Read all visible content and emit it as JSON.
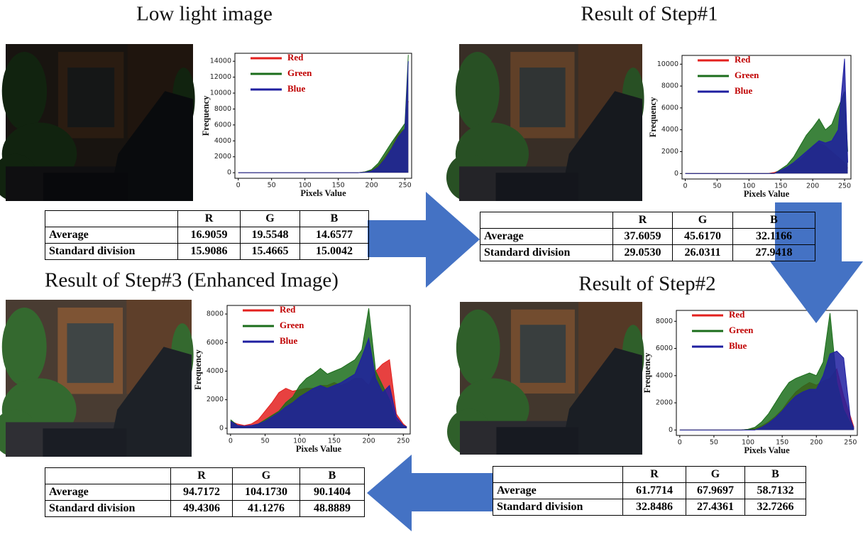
{
  "panels": [
    {
      "title": "Low light image",
      "chart": {
        "type": "area",
        "xlabel": "Pixels Value",
        "ylabel": "Frequency",
        "x": [
          0,
          10,
          20,
          30,
          40,
          50,
          60,
          70,
          80,
          90,
          100,
          110,
          120,
          130,
          140,
          150,
          160,
          170,
          180,
          190,
          200,
          210,
          220,
          230,
          240,
          250,
          255
        ],
        "xlim": [
          -5,
          260
        ],
        "xticks": [
          0,
          50,
          100,
          150,
          200,
          250
        ],
        "ylim": [
          -700,
          15000
        ],
        "yticks": [
          0,
          2000,
          4000,
          6000,
          8000,
          10000,
          12000,
          14000
        ],
        "series": [
          {
            "name": "Red",
            "color": "#e3201e",
            "values": [
              0,
              0,
              0,
              0,
              0,
              0,
              0,
              0,
              0,
              0,
              0,
              0,
              0,
              0,
              0,
              0,
              0,
              0,
              0,
              100,
              300,
              900,
              2000,
              3200,
              5000,
              5500,
              9000
            ]
          },
          {
            "name": "Green",
            "color": "#1b6d1b",
            "values": [
              0,
              0,
              0,
              0,
              0,
              0,
              0,
              0,
              0,
              0,
              0,
              0,
              0,
              0,
              0,
              0,
              0,
              0,
              0,
              100,
              400,
              1200,
              2500,
              3800,
              5000,
              6200,
              14800
            ]
          },
          {
            "name": "Blue",
            "color": "#1f1fa0",
            "values": [
              0,
              0,
              0,
              0,
              0,
              0,
              0,
              0,
              0,
              0,
              0,
              0,
              0,
              0,
              0,
              0,
              0,
              0,
              0,
              50,
              200,
              700,
              1700,
              3000,
              4500,
              5500,
              14000
            ]
          }
        ]
      },
      "table": {
        "header": [
          "R",
          "G",
          "B"
        ],
        "rows": [
          {
            "label": "Average",
            "values": [
              "16.9059",
              "19.5548",
              "14.6577"
            ]
          },
          {
            "label": "Standard division",
            "values": [
              "15.9086",
              "15.4665",
              "15.0042"
            ]
          }
        ]
      }
    },
    {
      "title": "Result of Step#1",
      "chart": {
        "type": "area",
        "xlabel": "Pixels Value",
        "ylabel": "Frequency",
        "x": [
          0,
          10,
          20,
          30,
          40,
          50,
          60,
          70,
          80,
          90,
          100,
          110,
          120,
          130,
          140,
          150,
          160,
          170,
          180,
          190,
          200,
          210,
          220,
          230,
          240,
          250,
          255
        ],
        "xlim": [
          -5,
          260
        ],
        "xticks": [
          0,
          50,
          100,
          150,
          200,
          250
        ],
        "ylim": [
          -500,
          10800
        ],
        "yticks": [
          0,
          2000,
          4000,
          6000,
          8000,
          10000
        ],
        "series": [
          {
            "name": "Red",
            "color": "#e3201e",
            "values": [
              0,
              0,
              0,
              0,
              0,
              0,
              0,
              0,
              0,
              0,
              0,
              0,
              0,
              0,
              100,
              300,
              600,
              900,
              1200,
              1800,
              2500,
              2800,
              2500,
              2000,
              1500,
              1000,
              500
            ]
          },
          {
            "name": "Green",
            "color": "#1b6d1b",
            "values": [
              0,
              0,
              0,
              0,
              0,
              0,
              0,
              0,
              0,
              0,
              0,
              0,
              0,
              0,
              0,
              400,
              800,
              1500,
              2500,
              3500,
              4200,
              5000,
              4000,
              4500,
              6000,
              7500,
              2000
            ]
          },
          {
            "name": "Blue",
            "color": "#1f1fa0",
            "values": [
              0,
              0,
              0,
              0,
              0,
              0,
              0,
              0,
              0,
              0,
              0,
              0,
              0,
              0,
              0,
              300,
              600,
              1000,
              1500,
              2000,
              2500,
              3000,
              2800,
              3000,
              4000,
              10500,
              1000
            ]
          }
        ]
      },
      "table": {
        "header": [
          "R",
          "G",
          "B"
        ],
        "rows": [
          {
            "label": "Average",
            "values": [
              "37.6059",
              "45.6170",
              "32.1166"
            ]
          },
          {
            "label": "Standard division",
            "values": [
              "29.0530",
              "26.0311",
              "27.9418"
            ]
          }
        ]
      }
    },
    {
      "title": "Result of Step#3 (Enhanced Image)",
      "chart": {
        "type": "area",
        "xlabel": "Pixels Value",
        "ylabel": "Frequency",
        "x": [
          0,
          10,
          20,
          30,
          40,
          50,
          60,
          70,
          80,
          90,
          100,
          110,
          120,
          130,
          140,
          150,
          160,
          170,
          180,
          190,
          200,
          210,
          220,
          230,
          240,
          250,
          255
        ],
        "xlim": [
          -5,
          260
        ],
        "xticks": [
          0,
          50,
          100,
          150,
          200,
          250
        ],
        "ylim": [
          -400,
          8600
        ],
        "yticks": [
          0,
          2000,
          4000,
          6000,
          8000
        ],
        "series": [
          {
            "name": "Red",
            "color": "#e3201e",
            "values": [
              500,
              300,
              200,
              300,
              600,
              1200,
              1800,
              2500,
              2800,
              2600,
              2700,
              2800,
              2800,
              3000,
              3000,
              3200,
              3000,
              3200,
              3500,
              3500,
              3000,
              4000,
              4500,
              4800,
              1000,
              300,
              100
            ]
          },
          {
            "name": "Green",
            "color": "#1b6d1b",
            "values": [
              600,
              200,
              100,
              100,
              300,
              600,
              900,
              1200,
              1800,
              2200,
              3000,
              3500,
              3800,
              4200,
              3800,
              4000,
              4200,
              4500,
              4800,
              5500,
              8400,
              4000,
              3000,
              2000,
              500,
              200,
              100
            ]
          },
          {
            "name": "Blue",
            "color": "#1f1fa0",
            "values": [
              500,
              200,
              150,
              200,
              300,
              500,
              800,
              1100,
              1500,
              1800,
              2200,
              2500,
              2800,
              3000,
              2800,
              3000,
              3200,
              3500,
              3800,
              5000,
              6300,
              3500,
              2500,
              3000,
              800,
              200,
              100
            ]
          }
        ]
      },
      "table": {
        "header": [
          "R",
          "G",
          "B"
        ],
        "rows": [
          {
            "label": "Average",
            "values": [
              "94.7172",
              "104.1730",
              "90.1404"
            ]
          },
          {
            "label": "Standard division",
            "values": [
              "49.4306",
              "41.1276",
              "48.8889"
            ]
          }
        ]
      }
    },
    {
      "title": "Result of Step#2",
      "chart": {
        "type": "area",
        "xlabel": "Pixels Value",
        "ylabel": "Frequency",
        "x": [
          0,
          10,
          20,
          30,
          40,
          50,
          60,
          70,
          80,
          90,
          100,
          110,
          120,
          130,
          140,
          150,
          160,
          170,
          180,
          190,
          200,
          210,
          220,
          230,
          240,
          250,
          255
        ],
        "xlim": [
          -5,
          260
        ],
        "xticks": [
          0,
          50,
          100,
          150,
          200,
          250
        ],
        "ylim": [
          -400,
          8800
        ],
        "yticks": [
          0,
          2000,
          4000,
          6000,
          8000
        ],
        "series": [
          {
            "name": "Red",
            "color": "#e3201e",
            "values": [
              0,
              0,
              0,
              0,
              0,
              0,
              0,
              0,
              0,
              0,
              50,
              100,
              300,
              600,
              1000,
              1500,
              2200,
              2800,
              3200,
              3500,
              3300,
              3600,
              3800,
              4500,
              2500,
              1000,
              200
            ]
          },
          {
            "name": "Green",
            "color": "#1b6d1b",
            "values": [
              0,
              0,
              0,
              0,
              0,
              0,
              0,
              0,
              0,
              0,
              50,
              200,
              600,
              1200,
              2000,
              2800,
              3500,
              3800,
              4000,
              4200,
              4000,
              5000,
              8600,
              3500,
              1500,
              500,
              100
            ]
          },
          {
            "name": "Blue",
            "color": "#1f1fa0",
            "values": [
              0,
              0,
              0,
              0,
              0,
              0,
              0,
              0,
              0,
              0,
              0,
              0,
              200,
              500,
              900,
              1400,
              2000,
              2500,
              2800,
              3000,
              3000,
              4000,
              5600,
              5800,
              5300,
              800,
              100
            ]
          }
        ]
      },
      "table": {
        "header": [
          "R",
          "G",
          "B"
        ],
        "rows": [
          {
            "label": "Average",
            "values": [
              "61.7714",
              "67.9697",
              "58.7132"
            ]
          },
          {
            "label": "Standard division",
            "values": [
              "32.8486",
              "27.4361",
              "32.7266"
            ]
          }
        ]
      }
    }
  ]
}
